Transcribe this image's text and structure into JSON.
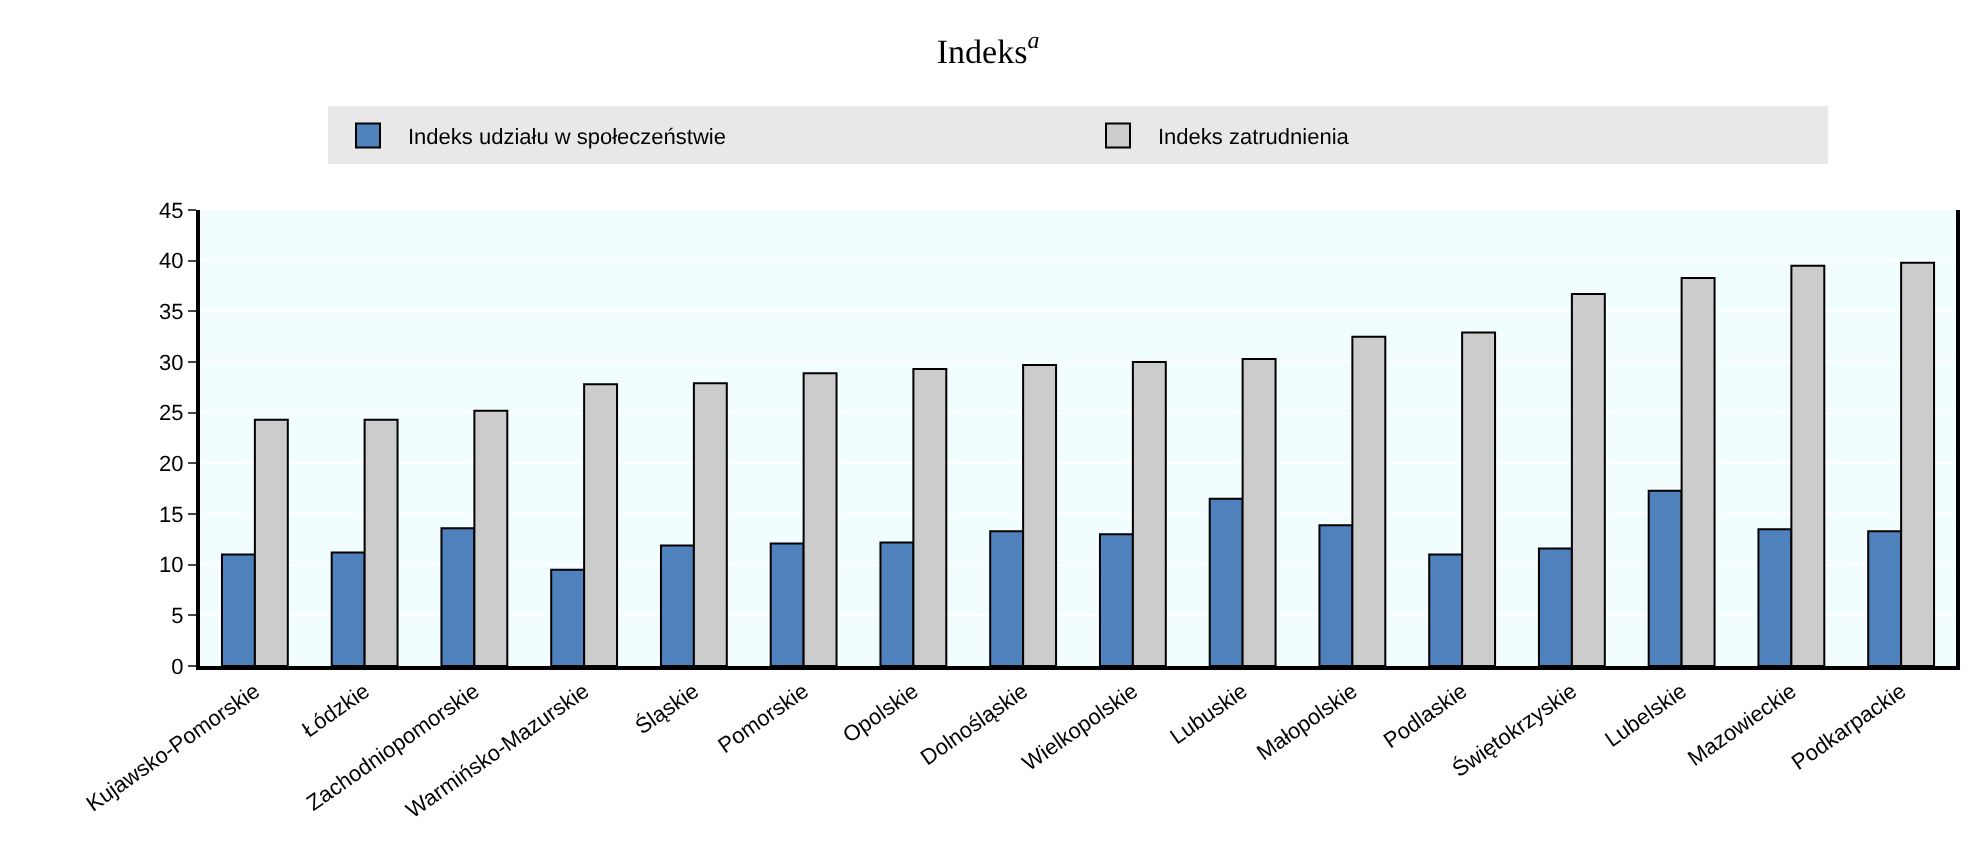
{
  "chart_data": {
    "type": "bar",
    "title": "Indeks$^{a}$",
    "categories": [
      "Kujawsko-Pomorskie",
      "Łódzkie",
      "Zachodniopomorskie",
      "Warmińsko-Mazurskie",
      "Śląskie",
      "Pomorskie",
      "Opolskie",
      "Dolnośląskie",
      "Wielkopolskie",
      "Lubuskie",
      "Małopolskie",
      "Podlaskie",
      "Świętokrzyskie",
      "Lubelskie",
      "Mazowieckie",
      "Podkarpackie"
    ],
    "series": [
      {
        "name": "Indeks udziału w społeczeństwie",
        "color": "#4f81bd",
        "values": [
          11.0,
          11.2,
          13.6,
          9.5,
          11.9,
          12.1,
          12.2,
          13.3,
          13.0,
          16.5,
          13.9,
          11.0,
          11.6,
          17.3,
          13.5,
          13.3
        ]
      },
      {
        "name": "Indeks zatrudnienia",
        "color": "#cccccc",
        "values": [
          24.3,
          24.3,
          25.2,
          27.8,
          27.9,
          28.9,
          29.3,
          29.7,
          30.0,
          30.3,
          32.5,
          32.9,
          36.7,
          38.3,
          39.5,
          39.8
        ]
      }
    ],
    "ylim": [
      0,
      45
    ],
    "yticks": [
      0,
      5,
      10,
      15,
      20,
      25,
      30,
      35,
      40,
      45
    ],
    "grid": "y",
    "legend": "top"
  }
}
